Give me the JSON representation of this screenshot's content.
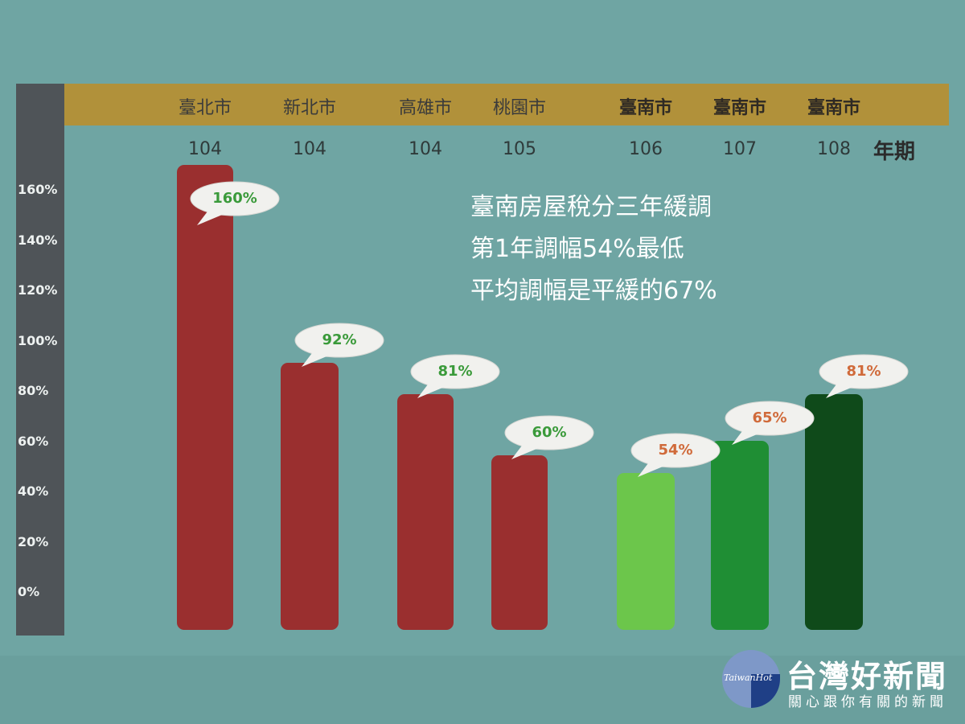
{
  "chart_data": {
    "type": "bar",
    "categories": [
      "臺北市",
      "新北市",
      "高雄市",
      "桃園市",
      "臺南市",
      "臺南市",
      "臺南市"
    ],
    "years": [
      "104",
      "104",
      "104",
      "105",
      "106",
      "107",
      "108"
    ],
    "year_header": "年期",
    "values": [
      160,
      92,
      81,
      60,
      54,
      65,
      81
    ],
    "data_labels": [
      "160%",
      "92%",
      "81%",
      "60%",
      "54%",
      "65%",
      "81%"
    ],
    "bar_colors": [
      "#9a2f2f",
      "#9a2f2f",
      "#9a2f2f",
      "#9a2f2f",
      "#6cc64b",
      "#1f8e34",
      "#0f4a1a"
    ],
    "label_colors": [
      "#3a9a3a",
      "#3a9a3a",
      "#3a9a3a",
      "#3a9a3a",
      "#d06a3a",
      "#d06a3a",
      "#d06a3a"
    ],
    "yticks": [
      "0%",
      "20%",
      "40%",
      "60%",
      "80%",
      "100%",
      "120%",
      "140%",
      "160%"
    ],
    "ylim": [
      0,
      160
    ],
    "annotation": [
      "臺南房屋稅分三年緩調",
      "第1年調幅54%最低",
      "平均調幅是平緩的67%"
    ],
    "grid": false
  },
  "logo": {
    "title": "台灣好新聞",
    "subtitle": "關心跟你有關的新聞",
    "english": "TaiwanHot"
  }
}
